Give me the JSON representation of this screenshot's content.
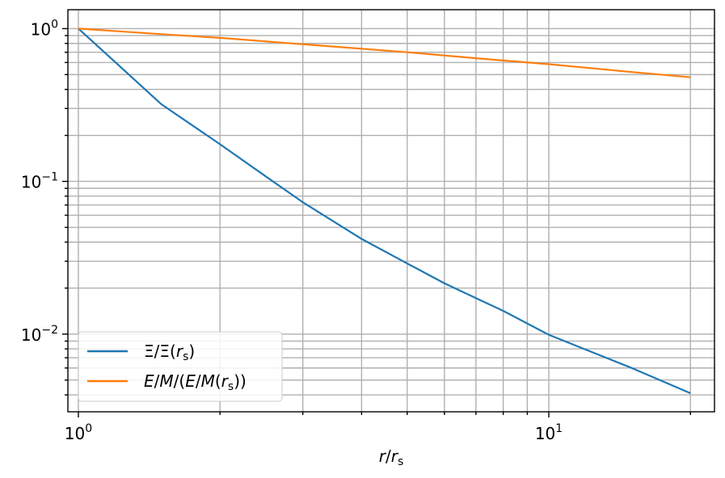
{
  "chart_data": {
    "type": "line",
    "xscale": "log",
    "yscale": "log",
    "xlim": [
      0.95,
      22.5
    ],
    "ylim": [
      0.0031,
      1.33
    ],
    "xlabel": "r/r_s",
    "ylabel": "",
    "grid": "major and minor",
    "legend_position": "lower-left",
    "x_ticks": [
      {
        "base": "10",
        "exp": "0",
        "value": 1
      },
      {
        "base": "10",
        "exp": "1",
        "value": 10
      }
    ],
    "y_ticks": [
      {
        "base": "10",
        "exp": "0",
        "value": 1
      },
      {
        "base": "10",
        "exp": "−1",
        "value": 0.1
      },
      {
        "base": "10",
        "exp": "−2",
        "value": 0.01
      }
    ],
    "series": [
      {
        "name": "Ξ/Ξ(r_s)",
        "color": "#1f77b4",
        "x": [
          1,
          1.2,
          1.5,
          2,
          2.5,
          3,
          4,
          5,
          6,
          7,
          8,
          10,
          12,
          15,
          20
        ],
        "y": [
          1,
          0.6,
          0.32,
          0.175,
          0.108,
          0.073,
          0.042,
          0.029,
          0.0215,
          0.0172,
          0.0142,
          0.0099,
          0.0079,
          0.006,
          0.0041
        ]
      },
      {
        "name": "E/M/(E/M(r_s))",
        "color": "#ff7f0e",
        "x": [
          1,
          1.5,
          2,
          3,
          5,
          7,
          10,
          15,
          20
        ],
        "y": [
          1,
          0.92,
          0.87,
          0.79,
          0.7,
          0.64,
          0.585,
          0.52,
          0.48
        ]
      }
    ]
  }
}
